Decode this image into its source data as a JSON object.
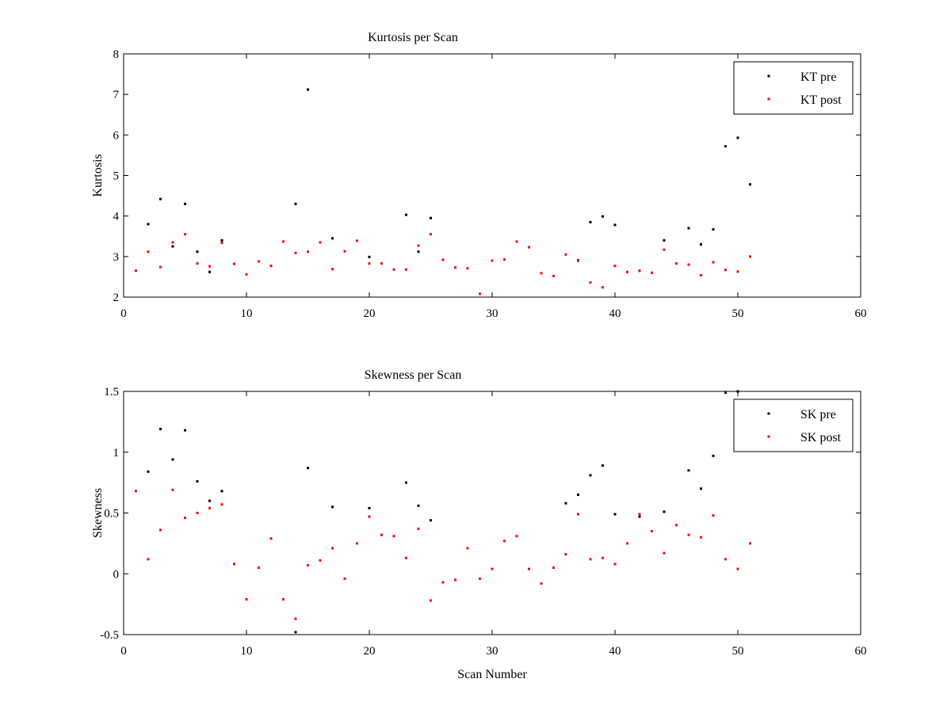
{
  "chart_data": [
    {
      "type": "scatter",
      "title": "Kurtosis per Scan",
      "xlabel": "",
      "ylabel": "Kurtosis",
      "xlim": [
        0,
        60
      ],
      "ylim": [
        2,
        8
      ],
      "xticks": [
        0,
        10,
        20,
        30,
        40,
        50,
        60
      ],
      "yticks": [
        2,
        3,
        4,
        5,
        6,
        7,
        8
      ],
      "grid": false,
      "legend_position": "top-right",
      "series": [
        {
          "name": "KT pre",
          "color": "#000000",
          "marker": "point",
          "x": [
            2,
            3,
            4,
            5,
            6,
            7,
            8,
            14,
            15,
            17,
            20,
            23,
            24,
            25,
            37,
            38,
            39,
            40,
            42,
            44,
            46,
            47,
            48,
            49,
            50,
            51
          ],
          "y": [
            3.8,
            4.42,
            3.25,
            4.3,
            3.12,
            2.62,
            3.4,
            4.3,
            7.12,
            3.45,
            2.99,
            4.03,
            3.12,
            3.95,
            2.9,
            3.85,
            3.99,
            3.78,
            2.65,
            3.4,
            3.7,
            3.3,
            3.67,
            5.72,
            5.93,
            4.78
          ]
        },
        {
          "name": "KT post",
          "color": "#ff0000",
          "marker": "point",
          "x": [
            1,
            2,
            3,
            4,
            5,
            6,
            7,
            8,
            9,
            10,
            11,
            12,
            13,
            14,
            15,
            16,
            17,
            18,
            19,
            20,
            21,
            22,
            23,
            24,
            25,
            26,
            27,
            28,
            29,
            30,
            31,
            32,
            33,
            34,
            35,
            36,
            37,
            38,
            39,
            40,
            41,
            42,
            43,
            44,
            45,
            46,
            47,
            48,
            49,
            50,
            51
          ],
          "y": [
            2.65,
            3.12,
            2.74,
            3.35,
            3.55,
            2.83,
            2.76,
            3.34,
            2.82,
            2.56,
            2.88,
            2.77,
            3.37,
            3.09,
            3.12,
            3.35,
            2.69,
            3.13,
            3.39,
            2.83,
            2.83,
            2.68,
            2.68,
            3.27,
            3.55,
            2.92,
            2.73,
            2.71,
            2.08,
            2.9,
            2.93,
            3.37,
            3.23,
            2.59,
            2.52,
            3.05,
            2.91,
            2.36,
            2.24,
            2.77,
            2.62,
            2.65,
            2.6,
            3.17,
            2.83,
            2.8,
            2.54,
            2.86,
            2.67,
            2.63,
            3.0
          ]
        }
      ]
    },
    {
      "type": "scatter",
      "title": "Skewness per Scan",
      "xlabel": "Scan Number",
      "ylabel": "Skewness",
      "xlim": [
        0,
        60
      ],
      "ylim": [
        -0.5,
        1.5
      ],
      "xticks": [
        0,
        10,
        20,
        30,
        40,
        50,
        60
      ],
      "yticks": [
        -0.5,
        0,
        0.5,
        1,
        1.5
      ],
      "ytick_labels": [
        "-0.5",
        "0",
        "0.5",
        "1",
        "1.5"
      ],
      "grid": false,
      "legend_position": "top-right",
      "series": [
        {
          "name": "SK pre",
          "color": "#000000",
          "marker": "point",
          "x": [
            2,
            3,
            4,
            5,
            6,
            7,
            8,
            14,
            15,
            17,
            20,
            23,
            24,
            25,
            36,
            37,
            38,
            39,
            40,
            42,
            44,
            46,
            47,
            48,
            49,
            50
          ],
          "y": [
            0.84,
            1.19,
            0.94,
            1.18,
            0.76,
            0.6,
            0.68,
            -0.48,
            0.87,
            0.55,
            0.54,
            0.75,
            0.56,
            0.44,
            0.58,
            0.65,
            0.81,
            0.89,
            0.49,
            0.47,
            0.51,
            0.85,
            0.7,
            0.97,
            1.49,
            1.5
          ]
        },
        {
          "name": "SK post",
          "color": "#ff0000",
          "marker": "point",
          "x": [
            1,
            2,
            3,
            4,
            5,
            6,
            7,
            8,
            9,
            10,
            11,
            12,
            13,
            14,
            15,
            16,
            17,
            18,
            19,
            20,
            21,
            22,
            23,
            24,
            25,
            26,
            27,
            28,
            29,
            30,
            31,
            32,
            33,
            34,
            35,
            36,
            37,
            38,
            39,
            40,
            41,
            42,
            43,
            44,
            45,
            46,
            47,
            48,
            49,
            50,
            51
          ],
          "y": [
            0.68,
            0.12,
            0.36,
            0.69,
            0.46,
            0.5,
            0.54,
            0.57,
            0.08,
            -0.21,
            0.05,
            0.29,
            -0.21,
            -0.37,
            0.07,
            0.11,
            0.21,
            -0.04,
            0.25,
            0.47,
            0.32,
            0.31,
            0.13,
            0.37,
            -0.22,
            -0.07,
            -0.05,
            0.21,
            -0.04,
            0.04,
            0.27,
            0.31,
            0.04,
            -0.08,
            0.05,
            0.16,
            0.49,
            0.12,
            0.13,
            0.08,
            0.25,
            0.49,
            0.35,
            0.17,
            0.4,
            0.32,
            0.3,
            0.48,
            0.12,
            0.04,
            0.25
          ]
        }
      ]
    }
  ]
}
